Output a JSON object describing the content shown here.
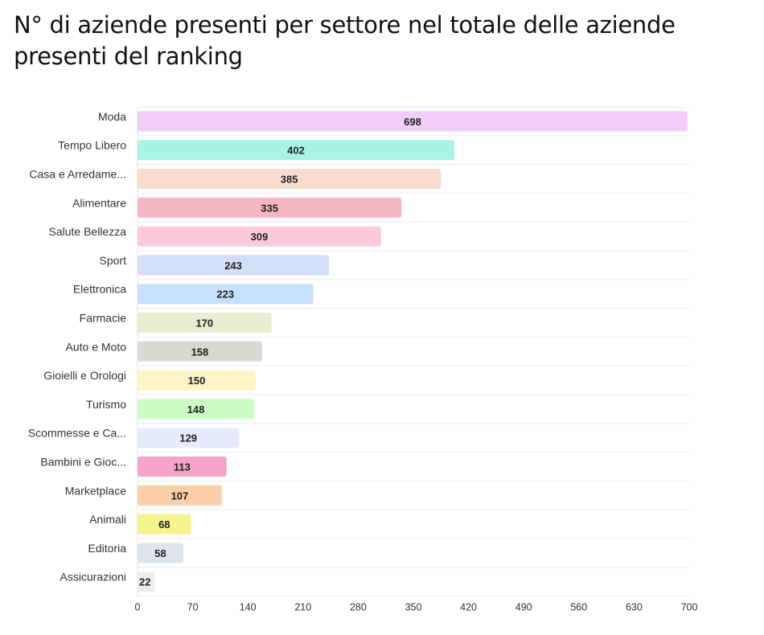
{
  "title": "N° di aziende presenti per settore nel totale delle aziende presenti del ranking",
  "chart_data": {
    "type": "bar",
    "orientation": "horizontal",
    "title": "N° di aziende presenti per settore nel totale delle aziende presenti del ranking",
    "categories": [
      "Moda",
      "Tempo Libero",
      "Casa e Arredame...",
      "Alimentare",
      "Salute Bellezza",
      "Sport",
      "Elettronica",
      "Farmacie",
      "Auto e Moto",
      "Gioielli e Orologi",
      "Turismo",
      "Scommesse e Ca...",
      "Bambini e Gioc...",
      "Marketplace",
      "Animali",
      "Editoria",
      "Assicurazioni"
    ],
    "values": [
      698,
      402,
      385,
      335,
      309,
      243,
      223,
      170,
      158,
      150,
      148,
      129,
      113,
      107,
      68,
      58,
      22
    ],
    "colors": [
      "#f2cdf9",
      "#a6f5e4",
      "#f7dccf",
      "#f5b6c3",
      "#fdc9dc",
      "#d5def9",
      "#c5e1fb",
      "#e9edd2",
      "#d8d8d5",
      "#fcf3c6",
      "#cbfcc4",
      "#e5ebfa",
      "#f4a3c9",
      "#fdcfa8",
      "#f6f48e",
      "#dde4eb",
      "#f0eeea"
    ],
    "xlim": [
      0,
      700
    ],
    "xticks": [
      "0",
      "70",
      "140",
      "210",
      "280",
      "350",
      "420",
      "490",
      "560",
      "630",
      "700"
    ],
    "grid": true,
    "xlabel": "",
    "ylabel": ""
  }
}
